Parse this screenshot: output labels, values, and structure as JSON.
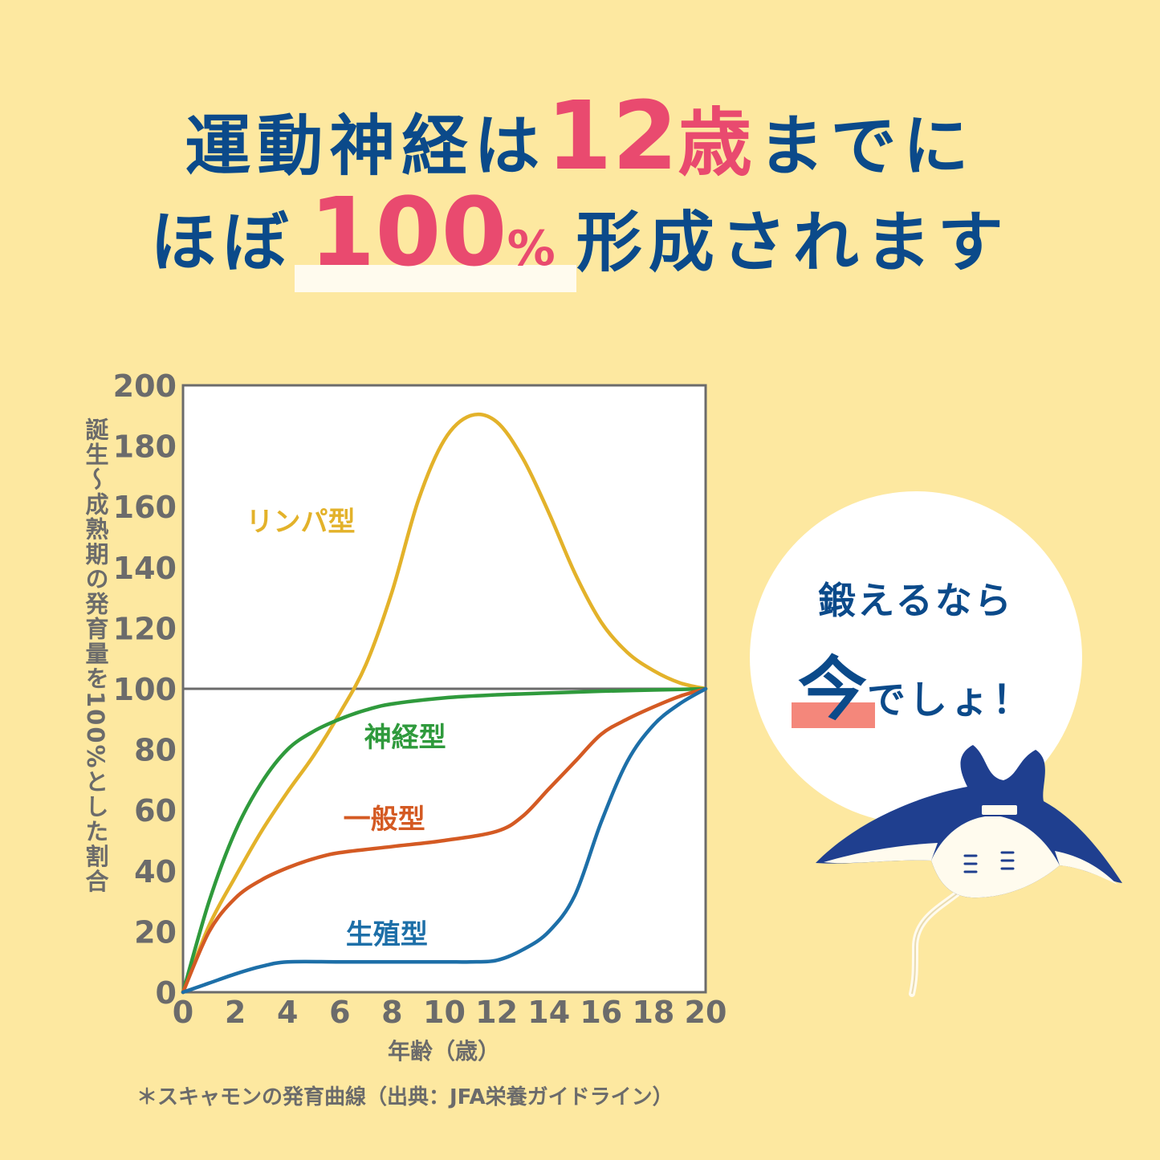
{
  "headline": {
    "line1_a": "運動神経は",
    "line1_num": "12",
    "line1_unit": "歳",
    "line1_b": "までに",
    "line2_a": "ほぼ",
    "line2_num": "100",
    "line2_pct": "%",
    "line2_b": "形成されます"
  },
  "bubble": {
    "line1": "鍛えるなら",
    "now": "今",
    "rest": "でしょ！"
  },
  "note": "＊スキャモンの発育曲線（出典：JFA栄養ガイドライン）",
  "chart_data": {
    "type": "line",
    "xlabel": "年齢（歳）",
    "ylabel": "誕生～成熟期の発育量を100%とした割合",
    "xlim": [
      0,
      20
    ],
    "ylim": [
      0,
      200
    ],
    "x_ticks": [
      0,
      2,
      4,
      6,
      8,
      10,
      12,
      14,
      16,
      18,
      20
    ],
    "y_ticks": [
      0,
      20,
      40,
      60,
      80,
      100,
      120,
      140,
      160,
      180,
      200
    ],
    "reference_line": 100,
    "series": [
      {
        "name": "リンパ型",
        "color": "#e3b22a",
        "points": [
          [
            0,
            0
          ],
          [
            1,
            22
          ],
          [
            2,
            38
          ],
          [
            3,
            53
          ],
          [
            4,
            66
          ],
          [
            5,
            78
          ],
          [
            6,
            92
          ],
          [
            7,
            108
          ],
          [
            8,
            132
          ],
          [
            9,
            162
          ],
          [
            10,
            182
          ],
          [
            11,
            190
          ],
          [
            12,
            188
          ],
          [
            13,
            176
          ],
          [
            14,
            158
          ],
          [
            15,
            138
          ],
          [
            16,
            122
          ],
          [
            17,
            112
          ],
          [
            18,
            106
          ],
          [
            19,
            102
          ],
          [
            20,
            100
          ]
        ]
      },
      {
        "name": "神経型",
        "color": "#2f9a3c",
        "points": [
          [
            0,
            0
          ],
          [
            1,
            30
          ],
          [
            2,
            53
          ],
          [
            3,
            69
          ],
          [
            4,
            80
          ],
          [
            5,
            86
          ],
          [
            6,
            90
          ],
          [
            7,
            93
          ],
          [
            8,
            95
          ],
          [
            10,
            97
          ],
          [
            12,
            98
          ],
          [
            14,
            98.6
          ],
          [
            16,
            99.2
          ],
          [
            18,
            99.6
          ],
          [
            20,
            100
          ]
        ]
      },
      {
        "name": "一般型",
        "color": "#d45a23",
        "points": [
          [
            0,
            0
          ],
          [
            1,
            20
          ],
          [
            2,
            31
          ],
          [
            3,
            37
          ],
          [
            4,
            41
          ],
          [
            5,
            44
          ],
          [
            6,
            46
          ],
          [
            8,
            48
          ],
          [
            10,
            50
          ],
          [
            12,
            53
          ],
          [
            13,
            58
          ],
          [
            14,
            67
          ],
          [
            15,
            76
          ],
          [
            16,
            85
          ],
          [
            17,
            90
          ],
          [
            18,
            94
          ],
          [
            19,
            97.5
          ],
          [
            20,
            100
          ]
        ]
      },
      {
        "name": "生殖型",
        "color": "#1d6fa8",
        "points": [
          [
            0,
            0
          ],
          [
            1,
            3
          ],
          [
            2,
            6
          ],
          [
            3,
            8.5
          ],
          [
            4,
            10
          ],
          [
            6,
            10
          ],
          [
            8,
            10
          ],
          [
            10,
            10
          ],
          [
            11,
            10
          ],
          [
            12,
            10.5
          ],
          [
            13,
            14
          ],
          [
            14,
            20
          ],
          [
            15,
            32
          ],
          [
            16,
            56
          ],
          [
            17,
            76
          ],
          [
            18,
            88
          ],
          [
            19,
            95
          ],
          [
            20,
            100
          ]
        ]
      }
    ]
  }
}
